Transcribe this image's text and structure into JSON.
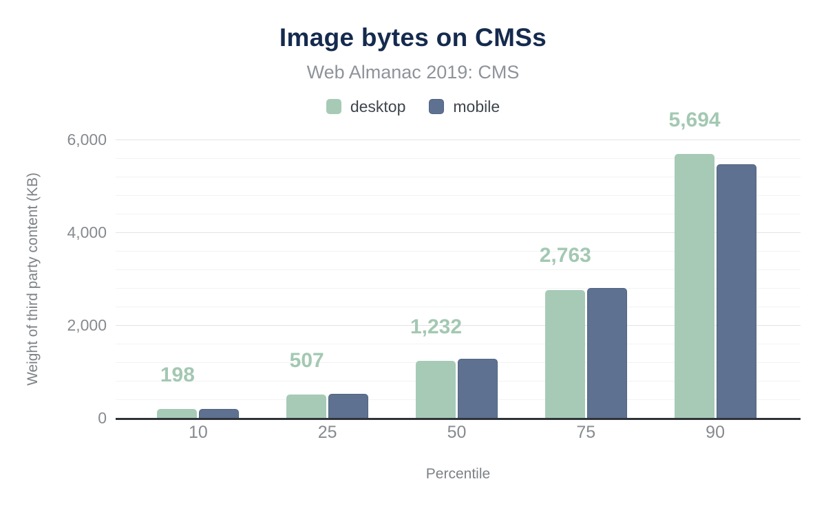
{
  "chart_data": {
    "type": "bar",
    "title": "Image bytes on CMSs",
    "subtitle": "Web Almanac 2019: CMS",
    "xlabel": "Percentile",
    "ylabel": "Weight of third party content (KB)",
    "categories": [
      "10",
      "25",
      "50",
      "75",
      "90"
    ],
    "series": [
      {
        "name": "desktop",
        "color": "#a6cab6",
        "dotted": false,
        "values": [
          198,
          507,
          1232,
          2763,
          5694
        ]
      },
      {
        "name": "mobile",
        "color": "#5e7190",
        "dotted": true,
        "values": [
          190,
          515,
          1270,
          2800,
          5460
        ]
      }
    ],
    "data_labels": {
      "series": "desktop",
      "values": [
        "198",
        "507",
        "1,232",
        "2,763",
        "5,694"
      ],
      "color": "#a3c8b2"
    },
    "ylim": [
      0,
      6000
    ],
    "yticks": [
      {
        "value": 6000,
        "label": "6,000"
      },
      {
        "value": 4000,
        "label": "4,000"
      },
      {
        "value": 2000,
        "label": "2,000"
      },
      {
        "value": 0,
        "label": "0"
      }
    ],
    "grid": {
      "minor_interval": 400,
      "major_interval": 2000,
      "minor_color": "#f2f2f2",
      "major_color": "#e3e3e3"
    },
    "legend_position": "top",
    "axis_line_color": "#2f3337"
  }
}
